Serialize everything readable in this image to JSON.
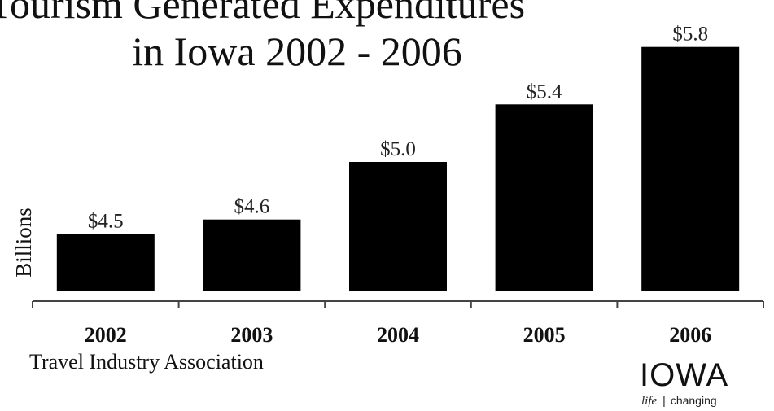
{
  "chart_data": {
    "type": "bar",
    "title_lines": [
      "Tourism Generated Expenditures",
      "in Iowa 2002 - 2006"
    ],
    "ylabel": "Billions",
    "xlabel": "",
    "categories": [
      "2002",
      "2003",
      "2004",
      "2005",
      "2006"
    ],
    "values": [
      4.5,
      4.6,
      5.0,
      5.4,
      5.8
    ],
    "value_labels": [
      "$4.5",
      "$4.6",
      "$5.0",
      "$5.4",
      "$5.8"
    ],
    "ylim": [
      4.1,
      5.9
    ],
    "grid": false,
    "bar_color": "#000000",
    "source": "Travel Industry Association"
  },
  "logo": {
    "wordmark": "IOWA",
    "tagline_life": "life",
    "tagline_sep": "|",
    "tagline_changing": "changing"
  }
}
